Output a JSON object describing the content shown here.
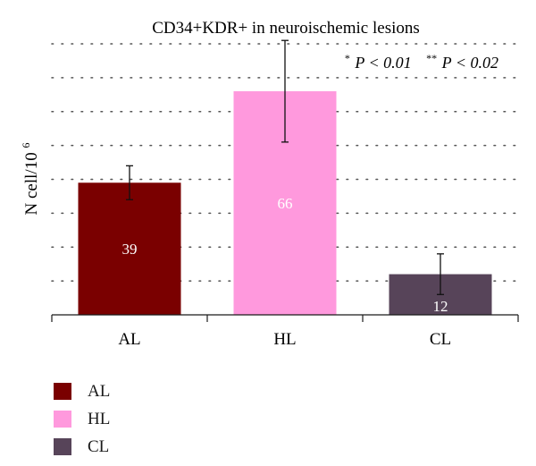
{
  "chart_data": {
    "type": "bar",
    "title": "CD34+KDR+ in neuroischemic lesions",
    "annotation": {
      "star1": "*",
      "p1": "P < 0.01",
      "star2": "**",
      "p2": "P < 0.02"
    },
    "ylabel": {
      "base": "N cell/10",
      "exp": "6"
    },
    "xlabel": "",
    "ylim": [
      0,
      80
    ],
    "categories": [
      "AL",
      "HL",
      "CL"
    ],
    "values": [
      39,
      66,
      12
    ],
    "error_low": [
      34,
      51,
      6
    ],
    "error_high": [
      44,
      81,
      18
    ],
    "bar_labels": [
      "39",
      "66",
      "12"
    ],
    "colors": [
      "#7a0000",
      "#ff99dd",
      "#574459"
    ],
    "legend": [
      {
        "label": "AL",
        "color": "#7a0000"
      },
      {
        "label": "HL",
        "color": "#ff99dd"
      },
      {
        "label": "CL",
        "color": "#574459"
      }
    ],
    "grid": true,
    "legend_position": "bottom-left"
  }
}
